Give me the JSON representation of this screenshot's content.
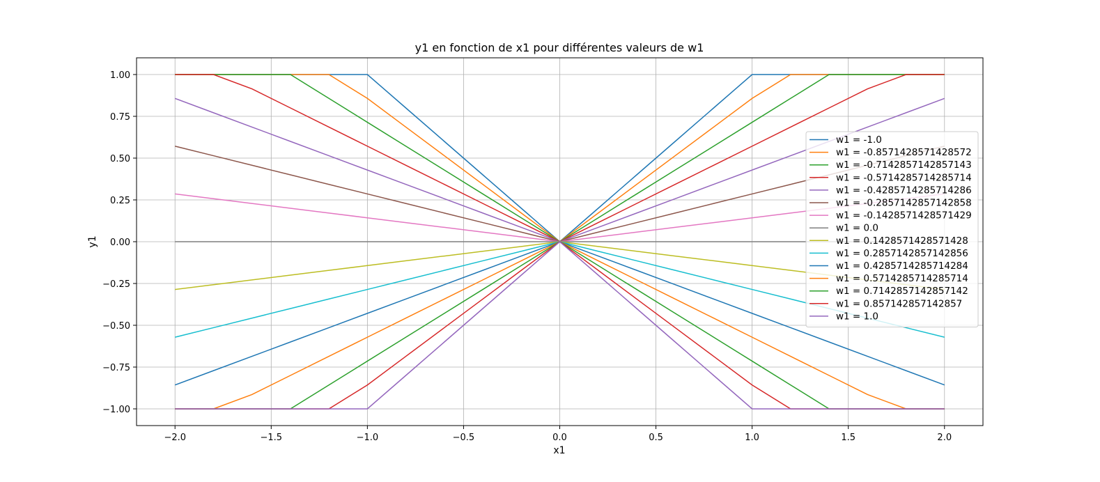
{
  "chart_data": {
    "type": "line",
    "title": "y1 en fonction de x1 pour différentes valeurs de w1",
    "xlabel": "x1",
    "ylabel": "y1",
    "xlim": [
      -2.2,
      2.2
    ],
    "ylim": [
      -1.1,
      1.1
    ],
    "xticks": [
      -2.0,
      -1.5,
      -1.0,
      -0.5,
      0.0,
      0.5,
      1.0,
      1.5,
      2.0
    ],
    "xtick_labels": [
      "−2.0",
      "−1.5",
      "−1.0",
      "−0.5",
      "0.0",
      "0.5",
      "1.0",
      "1.5",
      "2.0"
    ],
    "yticks": [
      -1.0,
      -0.75,
      -0.5,
      -0.25,
      0.0,
      0.25,
      0.5,
      0.75,
      1.0
    ],
    "ytick_labels": [
      "−1.00",
      "−0.75",
      "−0.50",
      "−0.25",
      "0.00",
      "0.25",
      "0.50",
      "0.75",
      "1.00"
    ],
    "grid": true,
    "legend_position": "center-right",
    "x": [
      -2.0,
      -1.8,
      -1.6,
      -1.4,
      -1.2,
      -1.0,
      -0.8,
      -0.6,
      -0.4,
      -0.2,
      0.0,
      0.2,
      0.4,
      0.6,
      0.8,
      1.0,
      1.2,
      1.4,
      1.6,
      1.8,
      2.0
    ],
    "function": "y1 = clip(-w1 * |x1|, -1, 1)",
    "series": [
      {
        "name": "w1 = -1.0",
        "w1": -1.0,
        "color": "#1f77b4"
      },
      {
        "name": "w1 = -0.8571428571428572",
        "w1": -0.8571428571428572,
        "color": "#ff7f0e"
      },
      {
        "name": "w1 = -0.7142857142857143",
        "w1": -0.7142857142857143,
        "color": "#2ca02c"
      },
      {
        "name": "w1 = -0.5714285714285714",
        "w1": -0.5714285714285714,
        "color": "#d62728"
      },
      {
        "name": "w1 = -0.4285714285714286",
        "w1": -0.4285714285714286,
        "color": "#9467bd"
      },
      {
        "name": "w1 = -0.2857142857142858",
        "w1": -0.2857142857142858,
        "color": "#8c564b"
      },
      {
        "name": "w1 = -0.1428571428571429",
        "w1": -0.1428571428571429,
        "color": "#e377c2"
      },
      {
        "name": "w1 = 0.0",
        "w1": 0.0,
        "color": "#7f7f7f"
      },
      {
        "name": "w1 = 0.1428571428571428",
        "w1": 0.1428571428571428,
        "color": "#bcbd22"
      },
      {
        "name": "w1 = 0.2857142857142856",
        "w1": 0.2857142857142856,
        "color": "#17becf"
      },
      {
        "name": "w1 = 0.4285714285714284",
        "w1": 0.4285714285714284,
        "color": "#1f77b4"
      },
      {
        "name": "w1 = 0.5714285714285714",
        "w1": 0.5714285714285714,
        "color": "#ff7f0e"
      },
      {
        "name": "w1 = 0.7142857142857142",
        "w1": 0.7142857142857142,
        "color": "#2ca02c"
      },
      {
        "name": "w1 = 0.857142857142857",
        "w1": 0.857142857142857,
        "color": "#d62728"
      },
      {
        "name": "w1 = 1.0",
        "w1": 1.0,
        "color": "#9467bd"
      }
    ]
  }
}
